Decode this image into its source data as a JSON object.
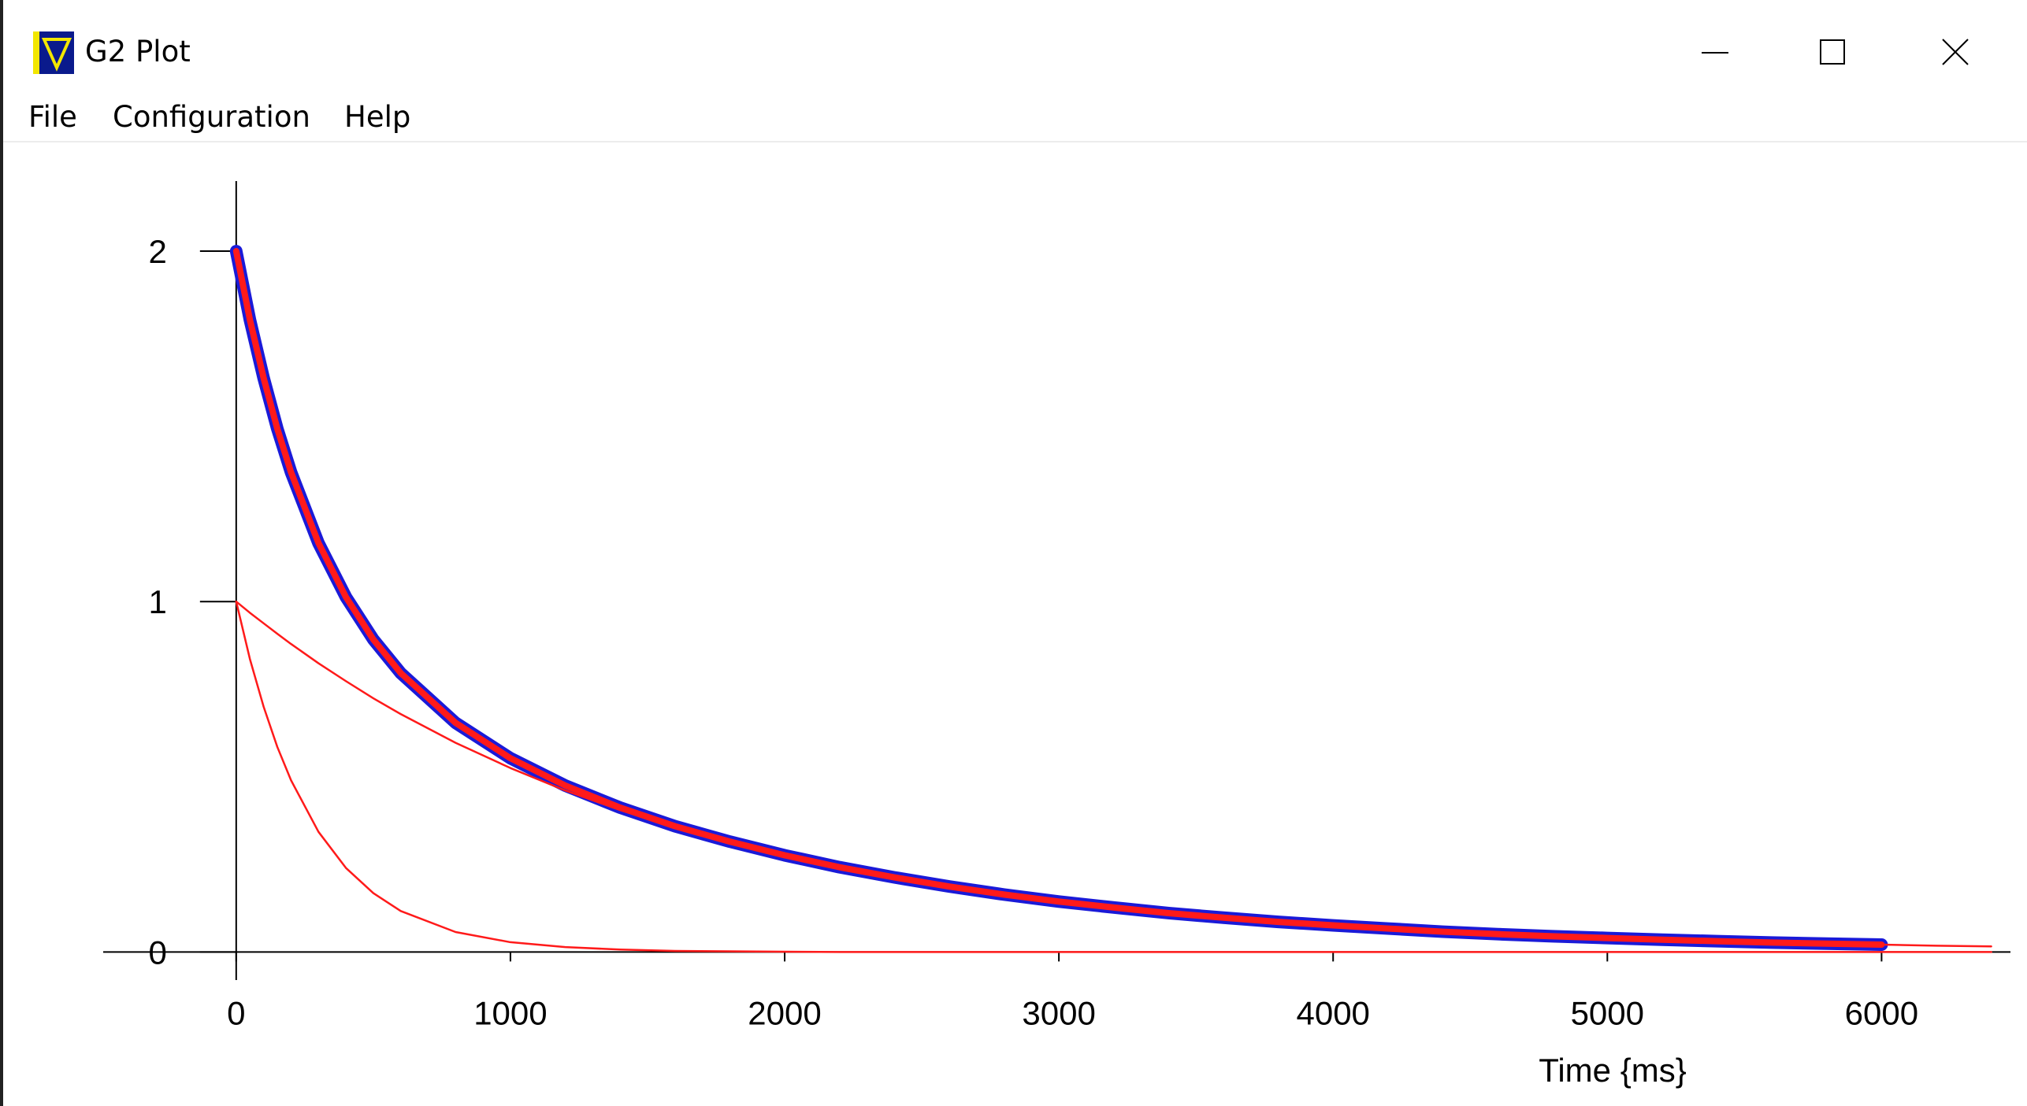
{
  "window": {
    "title": "G2 Plot",
    "menu": [
      "File",
      "Configuration",
      "Help"
    ]
  },
  "chart_data": {
    "type": "line",
    "xlabel": "Time {ms}",
    "x": [
      0,
      50,
      100,
      150,
      200,
      300,
      400,
      500,
      600,
      800,
      1000,
      1200,
      1400,
      1600,
      1800,
      2000,
      2200,
      2400,
      2600,
      2800,
      3000,
      3200,
      3400,
      3600,
      3800,
      4000,
      4200,
      4400,
      4600,
      4800,
      5000,
      5200,
      5400,
      5600,
      5800,
      6000,
      6200,
      6400
    ],
    "series": [
      {
        "color": "#1a1ad8",
        "width": 16,
        "values": [
          2.0,
          1.804,
          1.638,
          1.493,
          1.369,
          1.167,
          1.013,
          0.892,
          0.796,
          0.654,
          0.553,
          0.475,
          0.412,
          0.359,
          0.315,
          0.276,
          0.242,
          0.213,
          0.187,
          0.164,
          0.144,
          0.127,
          0.111,
          0.098,
          0.086,
          0.076,
          0.067,
          0.058,
          0.051,
          0.045,
          0.04,
          0.035,
          0.031,
          0.027,
          0.024,
          0.021,
          null,
          null
        ]
      },
      {
        "color": "#ff1a1a",
        "width": 8,
        "values": [
          2.0,
          1.804,
          1.638,
          1.493,
          1.369,
          1.167,
          1.013,
          0.892,
          0.796,
          0.654,
          0.553,
          0.475,
          0.412,
          0.359,
          0.315,
          0.276,
          0.242,
          0.213,
          0.187,
          0.164,
          0.144,
          0.127,
          0.111,
          0.098,
          0.086,
          0.076,
          0.067,
          0.058,
          0.051,
          0.045,
          0.04,
          0.035,
          0.031,
          0.027,
          0.024,
          0.021,
          null,
          null
        ]
      },
      {
        "color": "#ff1a1a",
        "width": 2.5,
        "values": [
          1.0,
          0.968,
          0.938,
          0.908,
          0.879,
          0.824,
          0.773,
          0.724,
          0.679,
          0.597,
          0.525,
          0.461,
          0.405,
          0.356,
          0.313,
          0.275,
          0.242,
          0.213,
          0.187,
          0.164,
          0.144,
          0.127,
          0.111,
          0.098,
          0.086,
          0.076,
          0.067,
          0.058,
          0.051,
          0.045,
          0.04,
          0.035,
          0.031,
          0.027,
          0.024,
          0.021,
          0.018,
          0.016
        ]
      },
      {
        "color": "#ff1a1a",
        "width": 2.5,
        "values": [
          1.0,
          0.836,
          0.7,
          0.585,
          0.49,
          0.343,
          0.24,
          0.168,
          0.117,
          0.057,
          0.028,
          0.014,
          0.007,
          0.003,
          0.002,
          0.001,
          0,
          0,
          0,
          0,
          0,
          0,
          0,
          0,
          0,
          0,
          0,
          0,
          0,
          0,
          0,
          0,
          0,
          0,
          0,
          0,
          0,
          0
        ]
      }
    ],
    "xlim": [
      -485,
      6470
    ],
    "ylim": [
      -0.08,
      2.2
    ],
    "xticks": [
      0,
      1000,
      2000,
      3000,
      4000,
      5000,
      6000
    ],
    "yticks": [
      0,
      1,
      2
    ],
    "axis_color": "#000000"
  }
}
